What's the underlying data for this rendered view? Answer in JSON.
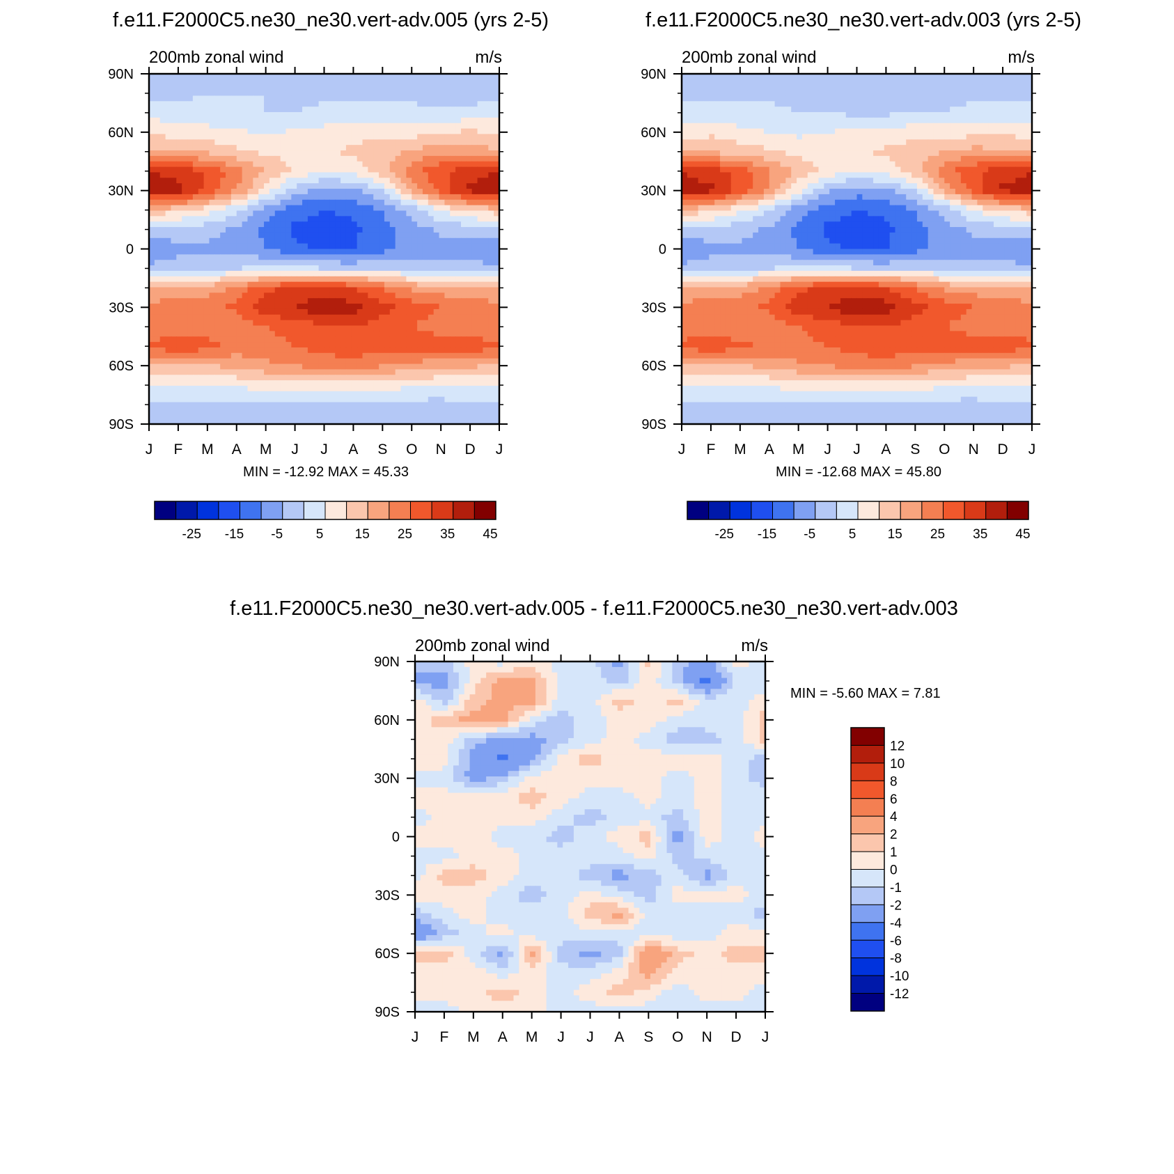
{
  "colors": {
    "panel_levels": [
      "#000080",
      "#0019aa",
      "#0033dd",
      "#1f4ff0",
      "#3f73f0",
      "#7fa0f2",
      "#b4c8f6",
      "#d6e6fa",
      "#fde9dd",
      "#fbc6ad",
      "#f8a47e",
      "#f47f52",
      "#f1582c",
      "#d93a18",
      "#b21e0c",
      "#820000"
    ],
    "diff_levels": [
      "#000080",
      "#0019aa",
      "#0033dd",
      "#1f4ff0",
      "#3f73f0",
      "#7fa0f2",
      "#b4c8f6",
      "#d6e6fa",
      "#fde9dd",
      "#fbc6ad",
      "#f8a47e",
      "#f47f52",
      "#f1582c",
      "#d93a18",
      "#b21e0c",
      "#820000"
    ]
  },
  "chart_data": [
    {
      "type": "heatmap",
      "title": "f.e11.F2000C5.ne30_ne30.vert-adv.005 (yrs 2-5)",
      "left_label": "200mb zonal wind",
      "right_label": "m/s",
      "x_ticks": [
        "J",
        "F",
        "M",
        "A",
        "M",
        "J",
        "J",
        "A",
        "S",
        "O",
        "N",
        "D",
        "J"
      ],
      "y_ticks": [
        "90N",
        "60N",
        "30N",
        "0",
        "30S",
        "60S",
        "90S"
      ],
      "ylim": [
        -90,
        90
      ],
      "stats": "MIN = -12.92 MAX =  45.33",
      "levels": [
        -30,
        -25,
        -20,
        -15,
        -10,
        -5,
        0,
        5,
        10,
        15,
        20,
        25,
        30,
        35,
        40,
        45
      ],
      "colorbar_labels": [
        "-25",
        "-15",
        "-5",
        "5",
        "15",
        "25",
        "35",
        "45"
      ],
      "lat": [
        90,
        80,
        70,
        60,
        50,
        40,
        30,
        20,
        10,
        0,
        -10,
        -20,
        -30,
        -40,
        -50,
        -60,
        -70,
        -80,
        -90
      ],
      "months": [
        "J",
        "F",
        "M",
        "A",
        "M",
        "J",
        "J",
        "A",
        "S",
        "O",
        "N",
        "D",
        "J"
      ],
      "values": [
        [
          2,
          2,
          3,
          3,
          3,
          2,
          2,
          2,
          2,
          2,
          2,
          1,
          2
        ],
        [
          3,
          4,
          5,
          5,
          5,
          4,
          4,
          4,
          4,
          4,
          3,
          2,
          3
        ],
        [
          8,
          7,
          6,
          6,
          5,
          5,
          6,
          6,
          6,
          6,
          6,
          7,
          8
        ],
        [
          14,
          13,
          12,
          11,
          9,
          11,
          12,
          13,
          14,
          13,
          14,
          16,
          14
        ],
        [
          21,
          20,
          19,
          16,
          14,
          14,
          14,
          16,
          18,
          21,
          23,
          22,
          21
        ],
        [
          40,
          38,
          34,
          27,
          20,
          14,
          10,
          12,
          18,
          28,
          34,
          38,
          40
        ],
        [
          43,
          42,
          34,
          25,
          12,
          2,
          -2,
          -1,
          5,
          20,
          33,
          41,
          43
        ],
        [
          18,
          17,
          12,
          6,
          -3,
          -8,
          -10,
          -9,
          -5,
          2,
          10,
          16,
          18
        ],
        [
          3,
          3,
          2,
          -1,
          -6,
          -11,
          -12,
          -11,
          -7,
          -2,
          1,
          2,
          3
        ],
        [
          -3,
          -2,
          -1,
          -2,
          -5,
          -9,
          -11,
          -10,
          -7,
          -3,
          -2,
          -2,
          -3
        ],
        [
          1,
          3,
          4,
          5,
          6,
          6,
          5,
          4,
          5,
          3,
          2,
          1,
          1
        ],
        [
          20,
          21,
          22,
          26,
          34,
          36,
          36,
          35,
          30,
          24,
          22,
          20,
          20
        ],
        [
          27,
          28,
          29,
          31,
          38,
          40,
          44,
          42,
          37,
          33,
          30,
          28,
          27
        ],
        [
          25,
          26,
          27,
          27,
          30,
          32,
          34,
          35,
          32,
          30,
          28,
          26,
          25
        ],
        [
          32,
          34,
          32,
          28,
          28,
          30,
          32,
          33,
          33,
          33,
          33,
          33,
          32
        ],
        [
          18,
          19,
          20,
          21,
          24,
          25,
          27,
          28,
          25,
          23,
          22,
          21,
          18
        ],
        [
          10,
          10,
          11,
          11,
          12,
          12,
          12,
          13,
          12,
          11,
          10,
          10,
          10
        ],
        [
          5,
          4,
          3,
          3,
          3,
          3,
          3,
          3,
          3,
          3,
          3,
          4,
          5
        ],
        [
          3,
          2,
          2,
          2,
          2,
          2,
          2,
          2,
          2,
          2,
          2,
          2,
          3
        ]
      ]
    },
    {
      "type": "heatmap",
      "title": "f.e11.F2000C5.ne30_ne30.vert-adv.003 (yrs 2-5)",
      "left_label": "200mb zonal wind",
      "right_label": "m/s",
      "x_ticks": [
        "J",
        "F",
        "M",
        "A",
        "M",
        "J",
        "J",
        "A",
        "S",
        "O",
        "N",
        "D",
        "J"
      ],
      "y_ticks": [
        "90N",
        "60N",
        "30N",
        "0",
        "30S",
        "60S",
        "90S"
      ],
      "ylim": [
        -90,
        90
      ],
      "stats": "MIN = -12.68 MAX =  45.80",
      "levels": [
        -30,
        -25,
        -20,
        -15,
        -10,
        -5,
        0,
        5,
        10,
        15,
        20,
        25,
        30,
        35,
        40,
        45
      ],
      "colorbar_labels": [
        "-25",
        "-15",
        "-5",
        "5",
        "15",
        "25",
        "35",
        "45"
      ],
      "lat": [
        90,
        80,
        70,
        60,
        50,
        40,
        30,
        20,
        10,
        0,
        -10,
        -20,
        -30,
        -40,
        -50,
        -60,
        -70,
        -80,
        -90
      ],
      "months": [
        "J",
        "F",
        "M",
        "A",
        "M",
        "J",
        "J",
        "A",
        "S",
        "O",
        "N",
        "D",
        "J"
      ],
      "values": [
        [
          2,
          2,
          2,
          2,
          2,
          2,
          1,
          1,
          2,
          2,
          2,
          2,
          2
        ],
        [
          4,
          4,
          4,
          4,
          4,
          4,
          3,
          3,
          4,
          4,
          4,
          4,
          4
        ],
        [
          6,
          6,
          7,
          6,
          5,
          5,
          4,
          4,
          5,
          5,
          6,
          6,
          6
        ],
        [
          12,
          14,
          11,
          10,
          9,
          10,
          11,
          12,
          13,
          13,
          13,
          14,
          12
        ],
        [
          20,
          19,
          18,
          16,
          13,
          13,
          14,
          16,
          18,
          20,
          22,
          21,
          20
        ],
        [
          40,
          38,
          33,
          26,
          19,
          13,
          10,
          12,
          18,
          28,
          34,
          38,
          40
        ],
        [
          42,
          41,
          33,
          24,
          11,
          1,
          -3,
          -1,
          5,
          20,
          33,
          41,
          42
        ],
        [
          18,
          17,
          11,
          5,
          -3,
          -8,
          -10,
          -9,
          -5,
          2,
          10,
          16,
          18
        ],
        [
          3,
          3,
          2,
          -1,
          -6,
          -11,
          -12,
          -11,
          -7,
          -2,
          1,
          2,
          3
        ],
        [
          -3,
          -2,
          -1,
          -2,
          -5,
          -9,
          -11,
          -10,
          -7,
          -3,
          -2,
          -2,
          -3
        ],
        [
          1,
          3,
          4,
          5,
          6,
          6,
          5,
          4,
          5,
          3,
          2,
          1,
          1
        ],
        [
          20,
          21,
          22,
          26,
          34,
          36,
          37,
          35,
          30,
          24,
          22,
          20,
          20
        ],
        [
          27,
          28,
          29,
          31,
          38,
          40,
          45,
          42,
          37,
          33,
          30,
          28,
          27
        ],
        [
          26,
          26,
          27,
          27,
          30,
          32,
          34,
          35,
          32,
          30,
          28,
          26,
          26
        ],
        [
          32,
          34,
          31,
          29,
          29,
          30,
          32,
          33,
          33,
          33,
          33,
          33,
          32
        ],
        [
          18,
          19,
          20,
          21,
          24,
          25,
          27,
          28,
          25,
          23,
          22,
          21,
          18
        ],
        [
          10,
          10,
          11,
          11,
          12,
          12,
          12,
          13,
          12,
          11,
          10,
          10,
          10
        ],
        [
          5,
          4,
          3,
          3,
          3,
          3,
          3,
          3,
          3,
          3,
          3,
          4,
          5
        ],
        [
          3,
          2,
          2,
          2,
          2,
          2,
          2,
          2,
          2,
          2,
          2,
          2,
          3
        ]
      ]
    },
    {
      "type": "heatmap",
      "title": "f.e11.F2000C5.ne30_ne30.vert-adv.005 - f.e11.F2000C5.ne30_ne30.vert-adv.003",
      "left_label": "200mb zonal wind",
      "right_label": "m/s",
      "x_ticks": [
        "J",
        "F",
        "M",
        "A",
        "M",
        "J",
        "J",
        "A",
        "S",
        "O",
        "N",
        "D",
        "J"
      ],
      "y_ticks": [
        "90N",
        "60N",
        "30N",
        "0",
        "30S",
        "60S",
        "90S"
      ],
      "ylim": [
        -90,
        90
      ],
      "stats": "MIN =  -5.60 MAX =   7.81",
      "levels": [
        -14,
        -12,
        -10,
        -8,
        -6,
        -4,
        -2,
        -1,
        0,
        1,
        2,
        4,
        6,
        8,
        10,
        12
      ],
      "colorbar_labels": [
        "12",
        "10",
        "8",
        "6",
        "4",
        "2",
        "1",
        "0",
        "-1",
        "-2",
        "-4",
        "-6",
        "-8",
        "-10",
        "-12"
      ],
      "lat": [
        90,
        80,
        70,
        60,
        50,
        40,
        30,
        20,
        10,
        0,
        -10,
        -20,
        -30,
        -40,
        -50,
        -60,
        -70,
        -80,
        -90
      ],
      "months": [
        "J",
        "F",
        "M",
        "A",
        "M",
        "J",
        "J",
        "A",
        "S",
        "O",
        "N",
        "D",
        "J"
      ],
      "values": [
        [
          -1.5,
          -1.5,
          0.5,
          -0.5,
          0.5,
          -0.5,
          -0.5,
          -2.5,
          1.5,
          -1.5,
          -2.5,
          0.5,
          -0.5
        ],
        [
          -2.5,
          -2.5,
          0.5,
          2.5,
          2.5,
          -0.5,
          -0.5,
          -1.5,
          0.5,
          -1.5,
          -4.5,
          -0.5,
          -0.5
        ],
        [
          0.5,
          -1.5,
          1.5,
          2.5,
          2.5,
          -0.5,
          -0.5,
          1.5,
          0.5,
          1.5,
          -0.5,
          -0.5,
          0.5
        ],
        [
          0.5,
          1.5,
          2.5,
          2.5,
          -0.5,
          -1.5,
          -0.5,
          0.5,
          0.5,
          -0.5,
          -0.5,
          -0.5,
          1.5
        ],
        [
          0.5,
          0.5,
          -1.5,
          -2.5,
          -2.5,
          -1.5,
          -0.5,
          0.5,
          -0.5,
          -1.5,
          -1.5,
          -0.5,
          1.5
        ],
        [
          0.5,
          0.5,
          -2.5,
          -4.5,
          -2.5,
          0.5,
          1.5,
          0.5,
          0.5,
          0.5,
          0.5,
          -0.5,
          -1.5
        ],
        [
          -0.5,
          -0.5,
          -2.5,
          -1.5,
          0.5,
          0.5,
          0.5,
          0.5,
          0.5,
          -0.5,
          0.5,
          -0.5,
          -1.5
        ],
        [
          0.5,
          0.5,
          0.5,
          0.5,
          1.5,
          0.5,
          -0.5,
          -0.5,
          0.5,
          -0.5,
          0.5,
          -0.5,
          -0.5
        ],
        [
          -0.5,
          0.5,
          0.5,
          0.5,
          0.5,
          -0.5,
          -1.5,
          -0.5,
          -0.5,
          -1.5,
          0.5,
          -0.5,
          -0.5
        ],
        [
          0.5,
          0.5,
          0.5,
          -0.5,
          -0.5,
          -1.5,
          -0.5,
          0.5,
          1.5,
          -2.5,
          0.5,
          -0.5,
          0.5
        ],
        [
          -0.5,
          -0.5,
          0.5,
          0.5,
          -0.5,
          -0.5,
          -0.5,
          -0.5,
          0.5,
          -1.5,
          -0.5,
          -0.5,
          -0.5
        ],
        [
          -0.5,
          1.5,
          1.5,
          0.5,
          -0.5,
          -0.5,
          -1.5,
          -2.5,
          -1.5,
          -0.5,
          -2.5,
          -0.5,
          -0.5
        ],
        [
          0.5,
          0.5,
          0.5,
          -0.5,
          -1.5,
          -0.5,
          0.5,
          -0.5,
          -1.5,
          0.5,
          0.5,
          0.5,
          -0.5
        ],
        [
          -1.5,
          -0.5,
          0.5,
          -0.5,
          -0.5,
          -0.5,
          1.5,
          2.5,
          -0.5,
          -0.5,
          -0.5,
          -0.5,
          -1.5
        ],
        [
          -3.5,
          -1.5,
          -0.5,
          0.5,
          -0.5,
          -0.5,
          -0.5,
          -0.5,
          -0.5,
          -0.5,
          -0.5,
          0.5,
          0.5
        ],
        [
          1.5,
          1.5,
          -0.5,
          -2.5,
          2.5,
          -1.5,
          -2.5,
          -1.5,
          3.5,
          1.5,
          0.5,
          1.5,
          1.5
        ],
        [
          0.5,
          0.5,
          0.5,
          -0.5,
          0.5,
          -0.5,
          -0.5,
          0.5,
          2.5,
          0.5,
          0.5,
          0.5,
          0.5
        ],
        [
          0.5,
          0.5,
          0.5,
          1.5,
          0.5,
          -0.5,
          0.5,
          1.5,
          0.5,
          -0.5,
          0.5,
          0.5,
          -0.5
        ],
        [
          -0.5,
          -0.5,
          0.5,
          0.5,
          0.5,
          -0.5,
          -0.5,
          -0.5,
          -0.5,
          -0.5,
          -0.5,
          -0.5,
          -0.5
        ]
      ]
    }
  ]
}
